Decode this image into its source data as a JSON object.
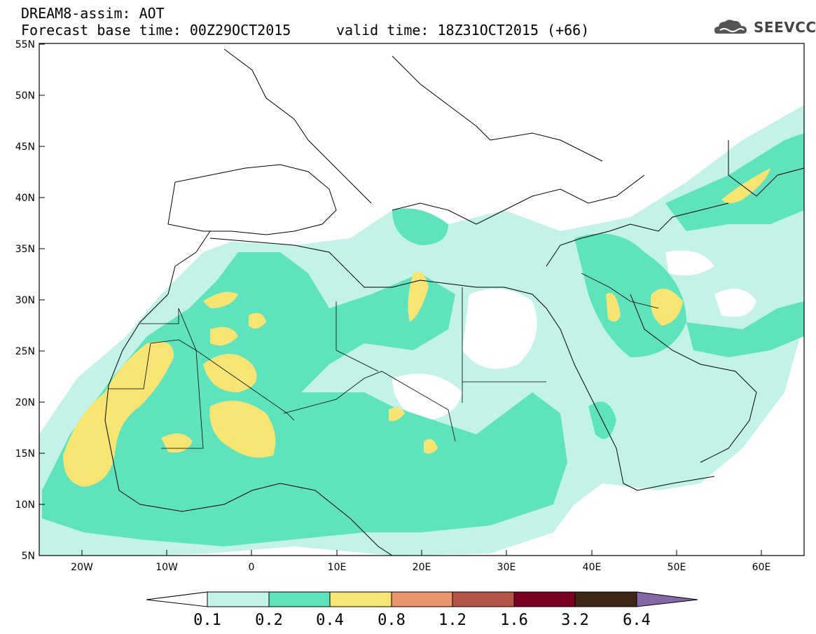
{
  "header": {
    "title": "DREAM8-assim: AOT",
    "base_time": "Forecast base time: 00Z29OCT2015",
    "valid_time": "valid time: 18Z31OCT2015 (+66)"
  },
  "logo": {
    "text": "SEEVCCC",
    "icon": "cloud-icon"
  },
  "map": {
    "lon_range": [
      -25,
      65
    ],
    "lat_range": [
      5,
      55
    ],
    "lat_ticks": [
      "5N",
      "10N",
      "15N",
      "20N",
      "25N",
      "30N",
      "35N",
      "40N",
      "45N",
      "50N",
      "55N"
    ],
    "lon_ticks": [
      "20W",
      "10W",
      "0",
      "10E",
      "20E",
      "30E",
      "40E",
      "50E",
      "60E"
    ]
  },
  "colorbar": {
    "colors": [
      "#ffffff",
      "#c2f2e8",
      "#5ee3bd",
      "#f6e473",
      "#e9956b",
      "#b45646",
      "#7c0024",
      "#3e2716",
      "#8468a6"
    ],
    "labels": [
      "0.1",
      "0.2",
      "0.4",
      "0.8",
      "1.2",
      "1.6",
      "3.2",
      "6.4"
    ]
  }
}
